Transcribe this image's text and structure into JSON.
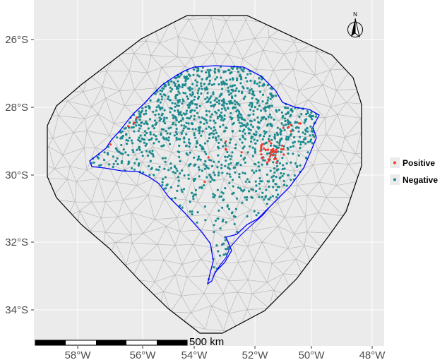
{
  "map": {
    "y_ticks": [
      "26°S",
      "28°S",
      "30°S",
      "32°S",
      "34°S"
    ],
    "x_ticks": [
      "58°W",
      "56°W",
      "54°W",
      "52°W",
      "50°W",
      "48°W"
    ],
    "scale_bar_label": "500 km",
    "north_label": "N"
  },
  "legend": {
    "items": [
      {
        "label": "Positive",
        "color": "#ef3b2c"
      },
      {
        "label": "Negative",
        "color": "#1b8a8f"
      }
    ]
  },
  "colors": {
    "panel_bg": "#ebebeb",
    "grid": "#ffffff",
    "mesh": "#b8b8b8",
    "domain_outline": "#000000",
    "state_border": "#0000ff"
  }
}
